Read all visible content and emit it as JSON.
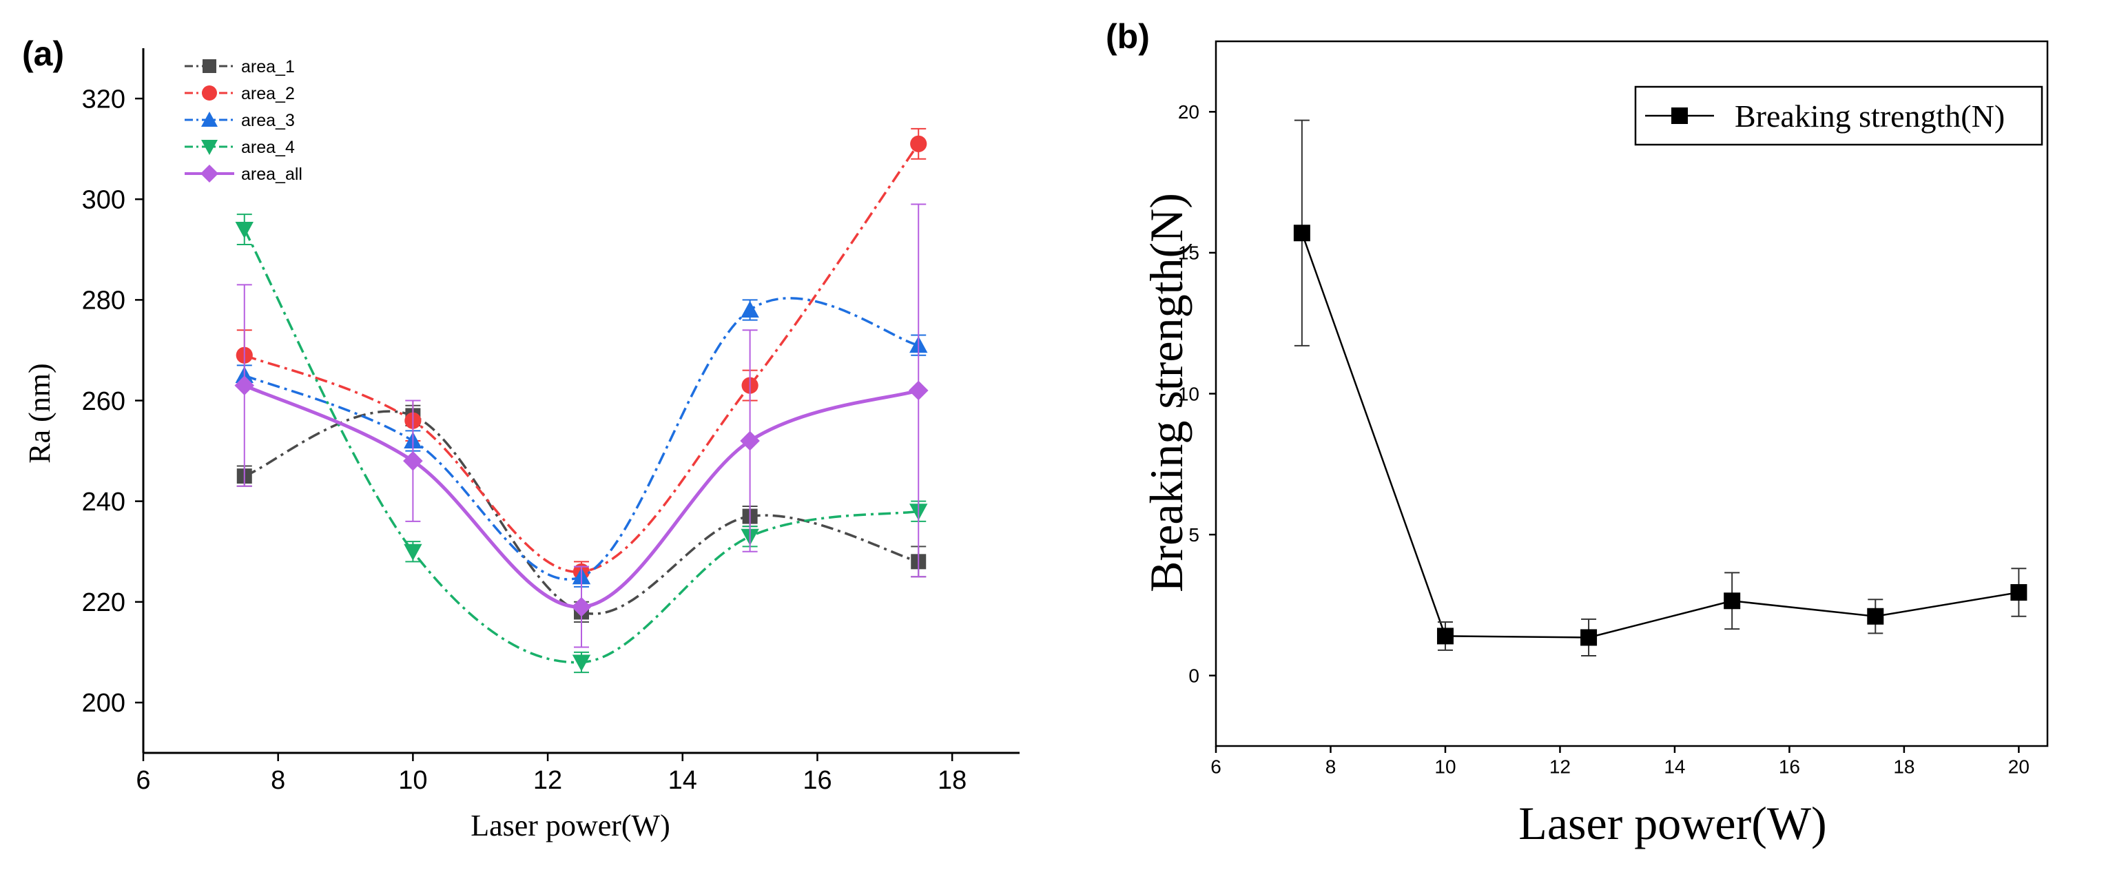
{
  "chart_data": [
    {
      "panel_label": "(a)",
      "type": "line",
      "title": "",
      "xlabel": "Laser power(W)",
      "ylabel": "Ra (nm)",
      "xlim": [
        6,
        19
      ],
      "ylim": [
        190,
        330
      ],
      "xticks": [
        6,
        8,
        10,
        12,
        14,
        16,
        18
      ],
      "yticks": [
        200,
        220,
        240,
        260,
        280,
        300,
        320
      ],
      "grid": false,
      "legend_position": "top-left",
      "x": [
        7.5,
        10,
        12.5,
        15,
        17.5
      ],
      "series": [
        {
          "name": "area_1",
          "color": "#4a4a4a",
          "marker": "square",
          "line": "dash-dot",
          "values": [
            245,
            257,
            218,
            237,
            228
          ],
          "errors": [
            2,
            2,
            2,
            2,
            3
          ]
        },
        {
          "name": "area_2",
          "color": "#f03c3c",
          "marker": "circle",
          "line": "dash-dot",
          "values": [
            269,
            256,
            226,
            263,
            311
          ],
          "errors": [
            5,
            4,
            2,
            3,
            3
          ]
        },
        {
          "name": "area_3",
          "color": "#1e6fe0",
          "marker": "triangle-up",
          "line": "dash-dot",
          "values": [
            265,
            252,
            225,
            278,
            271
          ],
          "errors": [
            2,
            2,
            2,
            2,
            2
          ]
        },
        {
          "name": "area_4",
          "color": "#19b06a",
          "marker": "triangle-down",
          "line": "dash-dot",
          "values": [
            294,
            230,
            208,
            233,
            238
          ],
          "errors": [
            3,
            2,
            2,
            2,
            2
          ]
        },
        {
          "name": "area_all",
          "color": "#b65ee0",
          "marker": "diamond",
          "line": "solid",
          "values": [
            263,
            248,
            219,
            252,
            262
          ],
          "errors": [
            20,
            12,
            8,
            22,
            37
          ]
        }
      ]
    },
    {
      "panel_label": "(b)",
      "type": "line",
      "title": "",
      "xlabel": "Laser power(W)",
      "ylabel": "Breaking strength(N)",
      "xlim": [
        6,
        20.5
      ],
      "ylim": [
        -2.5,
        22.5
      ],
      "xticks": [
        6,
        8,
        10,
        12,
        14,
        16,
        18,
        20
      ],
      "yticks": [
        0,
        5,
        10,
        15,
        20
      ],
      "grid": false,
      "legend_position": "top-right",
      "x": [
        7.5,
        10,
        12.5,
        15,
        17.5,
        20
      ],
      "series": [
        {
          "name": "Breaking strength(N)",
          "color": "#000000",
          "marker": "square",
          "line": "solid",
          "values": [
            15.7,
            1.4,
            1.35,
            2.65,
            2.1,
            2.95
          ],
          "errors": [
            4.0,
            0.5,
            0.65,
            1.0,
            0.6,
            0.85
          ]
        }
      ]
    }
  ]
}
